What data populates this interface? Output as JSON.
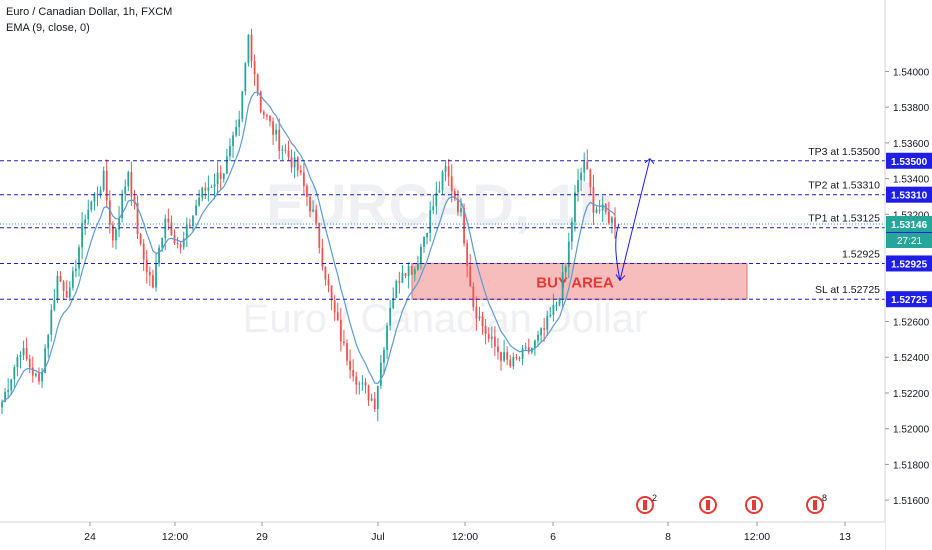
{
  "header": {
    "symbol_line": "Euro / Canadian Dollar, 1h, FXCM",
    "indicator_line": "EMA (9, close, 0)"
  },
  "watermark": {
    "ticker": "EURCAD, 1h",
    "name": "Euro / Canadian Dollar"
  },
  "colors": {
    "candle_up": "#26a69a",
    "candle_down": "#ef5350",
    "ema": "#5b9bd5",
    "level_line": "#1e1eb4",
    "label_blue": "#1e1ee6",
    "zone_fill": "#f4a6a6",
    "zone_text": "#e53935"
  },
  "chart_data": {
    "type": "candlestick",
    "ylim": [
      1.515,
      1.544
    ],
    "y_ticks": [
      "1.54000",
      "1.53800",
      "1.53600",
      "1.53400",
      "1.53200",
      "1.52600",
      "1.52400",
      "1.52200",
      "1.52000",
      "1.51800",
      "1.51600"
    ],
    "x_ticks": [
      "24",
      "12:00",
      "29",
      "Jul",
      "12:00",
      "6",
      "8",
      "12:00",
      "13"
    ],
    "price_path": [
      [
        0,
        1.5215
      ],
      [
        6,
        1.5245
      ],
      [
        12,
        1.5225
      ],
      [
        18,
        1.5285
      ],
      [
        22,
        1.5275
      ],
      [
        27,
        1.532
      ],
      [
        33,
        1.534
      ],
      [
        36,
        1.5305
      ],
      [
        41,
        1.5345
      ],
      [
        45,
        1.53
      ],
      [
        49,
        1.528
      ],
      [
        53,
        1.532
      ],
      [
        58,
        1.53
      ],
      [
        64,
        1.533
      ],
      [
        72,
        1.5345
      ],
      [
        77,
        1.537
      ],
      [
        80,
        1.542
      ],
      [
        84,
        1.538
      ],
      [
        90,
        1.536
      ],
      [
        96,
        1.5345
      ],
      [
        101,
        1.532
      ],
      [
        107,
        1.527
      ],
      [
        111,
        1.5245
      ],
      [
        116,
        1.5225
      ],
      [
        121,
        1.5215
      ],
      [
        126,
        1.527
      ],
      [
        130,
        1.529
      ],
      [
        134,
        1.529
      ],
      [
        139,
        1.532
      ],
      [
        144,
        1.5345
      ],
      [
        149,
        1.532
      ],
      [
        153,
        1.527
      ],
      [
        158,
        1.525
      ],
      [
        165,
        1.5235
      ],
      [
        172,
        1.5245
      ],
      [
        176,
        1.5255
      ],
      [
        180,
        1.527
      ],
      [
        183,
        1.529
      ],
      [
        186,
        1.533
      ],
      [
        189,
        1.535
      ],
      [
        192,
        1.5325
      ],
      [
        196,
        1.532
      ],
      [
        199,
        1.5315
      ]
    ],
    "ema_period": 9,
    "annotations": [
      {
        "label": "TP3 at 1.53500",
        "price": 1.535,
        "axis_badge": "1.53500"
      },
      {
        "label": "TP2 at 1.53310",
        "price": 1.5331,
        "axis_badge": "1.53310"
      },
      {
        "label": "TP1 at 1.53125",
        "price": 1.53125,
        "axis_badge": "1.53125"
      },
      {
        "label": "1.52925",
        "price": 1.52925,
        "axis_badge": "1.52925"
      },
      {
        "label": "SL at 1.52725",
        "price": 1.52725,
        "axis_badge": "1.52725"
      }
    ],
    "current_price": {
      "price": "1.53146",
      "countdown": "27:21"
    },
    "buy_zone": {
      "label": "BUY AREA",
      "low": 1.52725,
      "high": 1.52925
    },
    "event_icons": [
      {
        "badge": "2"
      },
      {
        "badge": ""
      },
      {
        "badge": ""
      },
      {
        "badge": "8"
      }
    ]
  }
}
